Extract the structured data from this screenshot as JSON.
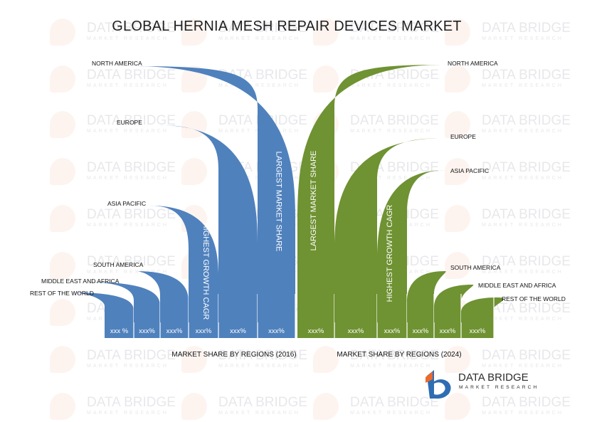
{
  "title": "GLOBAL HERNIA MESH REPAIR DEVICES MARKET",
  "watermark": {
    "name": "DATA BRIDGE",
    "tagline": "MARKET RESEARCH"
  },
  "logo": {
    "name": "DATA BRIDGE",
    "tagline": "MARKET RESEARCH"
  },
  "colors": {
    "left_series": "#4f81bd",
    "right_series": "#6f9232",
    "logo_blue": "#2f6db3",
    "logo_orange": "#ec6a2b"
  },
  "chart_data": [
    {
      "type": "bar",
      "title": "MARKET SHARE BY REGIONS (2016)",
      "categories": [
        "REST OF THE WORLD",
        "MIDDLE EAST AND AFRICA",
        "SOUTH AMERICA",
        "ASIA PACIFIC",
        "EUROPE",
        "NORTH AMERICA"
      ],
      "value_labels": [
        "xxx %",
        "xxx%",
        "xxx%",
        "xxx%",
        "xxx%",
        "xxx%"
      ],
      "annotations": [
        {
          "category": "ASIA PACIFIC",
          "text": "HIGHEST GROWTH CAGR"
        },
        {
          "category": "NORTH AMERICA",
          "text": "LARGEST MARKET SHARE"
        }
      ]
    },
    {
      "type": "bar",
      "title": "MARKET SHARE BY REGIONS (2024)",
      "categories": [
        "NORTH AMERICA",
        "EUROPE",
        "ASIA PACIFIC",
        "SOUTH AMERICA",
        "MIDDLE EAST AND AFRICA",
        "REST OF THE WORLD"
      ],
      "value_labels": [
        "xxx%",
        "xxx%",
        "xxx%",
        "xxx%",
        "xxx%",
        "xxx%"
      ],
      "annotations": [
        {
          "category": "NORTH AMERICA",
          "text": "LARGEST MARKET SHARE"
        },
        {
          "category": "ASIA PACIFIC",
          "text": "HIGHEST GROWTH CAGR"
        }
      ]
    }
  ]
}
